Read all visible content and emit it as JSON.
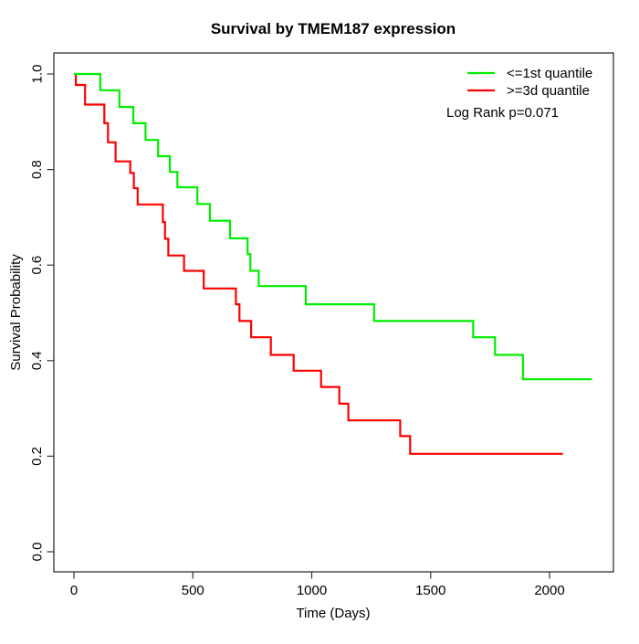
{
  "title": "Survival by TMEM187 expression",
  "x_axis": {
    "label": "Time (Days)",
    "ticks": [
      0,
      500,
      1000,
      1500,
      2000
    ],
    "tick_labels": [
      "0",
      "500",
      "1000",
      "1500",
      "2000"
    ]
  },
  "y_axis": {
    "label": "Survival Probability",
    "ticks": [
      0.0,
      0.2,
      0.4,
      0.6,
      0.8,
      1.0
    ],
    "tick_labels": [
      "0.0",
      "0.2",
      "0.4",
      "0.6",
      "0.8",
      "1.0"
    ]
  },
  "legend": {
    "items": [
      {
        "label": "<=1st quantile",
        "color": "#00ee00"
      },
      {
        "label": ">=3d quantile",
        "color": "#ff0000"
      }
    ],
    "annotation": "Log Rank p=0.071"
  },
  "chart_data": {
    "type": "line",
    "subtype": "kaplan-meier-step-curves",
    "title": "Survival by TMEM187 expression",
    "xlabel": "Time (Days)",
    "ylabel": "Survival Probability",
    "xlim": [
      0,
      2270
    ],
    "ylim": [
      0,
      1
    ],
    "grid": false,
    "legend_position": "top-right",
    "annotation": "Log Rank p=0.071",
    "series": [
      {
        "name": "<=1st quantile",
        "color": "#00ee00",
        "start": [
          0,
          1.0
        ],
        "end_time": 2178,
        "steps": [
          [
            111,
            0.966
          ],
          [
            191,
            0.931
          ],
          [
            250,
            0.897
          ],
          [
            301,
            0.862
          ],
          [
            354,
            0.828
          ],
          [
            403,
            0.795
          ],
          [
            435,
            0.763
          ],
          [
            519,
            0.728
          ],
          [
            572,
            0.693
          ],
          [
            656,
            0.656
          ],
          [
            730,
            0.623
          ],
          [
            742,
            0.588
          ],
          [
            777,
            0.556
          ],
          [
            975,
            0.518
          ],
          [
            1262,
            0.483
          ],
          [
            1679,
            0.449
          ],
          [
            1771,
            0.412
          ],
          [
            1888,
            0.361
          ]
        ]
      },
      {
        "name": ">=3d quantile",
        "color": "#ff0000",
        "start": [
          0,
          1.0
        ],
        "end_time": 2056,
        "steps": [
          [
            8,
            0.977
          ],
          [
            47,
            0.936
          ],
          [
            128,
            0.897
          ],
          [
            143,
            0.857
          ],
          [
            175,
            0.817
          ],
          [
            237,
            0.793
          ],
          [
            252,
            0.761
          ],
          [
            268,
            0.727
          ],
          [
            374,
            0.69
          ],
          [
            383,
            0.655
          ],
          [
            397,
            0.62
          ],
          [
            463,
            0.588
          ],
          [
            546,
            0.551
          ],
          [
            681,
            0.518
          ],
          [
            696,
            0.483
          ],
          [
            745,
            0.449
          ],
          [
            828,
            0.412
          ],
          [
            924,
            0.379
          ],
          [
            1039,
            0.345
          ],
          [
            1116,
            0.31
          ],
          [
            1154,
            0.275
          ],
          [
            1372,
            0.242
          ],
          [
            1414,
            0.205
          ]
        ]
      }
    ]
  }
}
